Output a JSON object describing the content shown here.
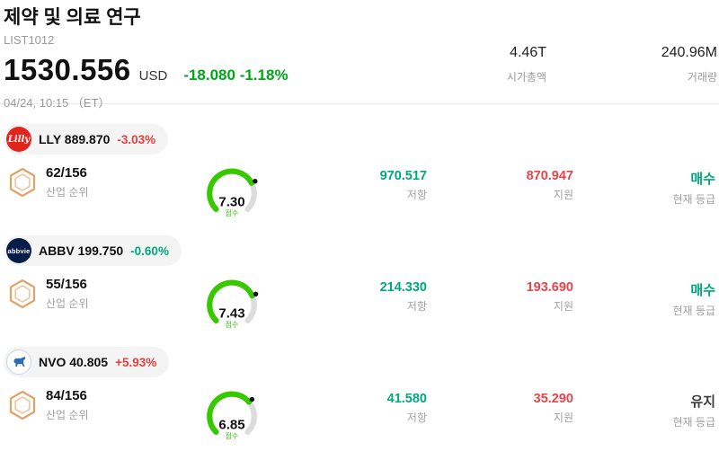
{
  "colors": {
    "main_change_green": "#00a619",
    "down_teal": "#00a87e",
    "up_red": "#e0433f",
    "support_red": "#e5454b",
    "gauge_green": "#37c800",
    "rating_hold_dark": "#3c3c3c"
  },
  "header": {
    "title": "제약 및 의료 연구",
    "list_id": "LIST1012",
    "price": "1530.556",
    "currency": "USD",
    "change": "-18.080 -1.18%",
    "datetime": "04/24, 10:15 （ET）",
    "market_cap": {
      "value": "4.46T",
      "label": "시가총액"
    },
    "volume": {
      "value": "240.96M",
      "label": "거래량"
    }
  },
  "labels": {
    "industry_rank": "산업 순위",
    "score": "점수",
    "resistance": "저항",
    "support": "지원",
    "current_rating": "현재 등급"
  },
  "icons": {
    "rank_badge": "hexagon-badge-icon",
    "nvo_logo": "bull-icon"
  },
  "stocks": [
    {
      "symbol": "LLY",
      "price": "889.870",
      "change": "-3.03%",
      "change_color": "#e0433f",
      "logo_text": "Lilly",
      "logo_bg": "#e1251b",
      "rank": "62/156",
      "score": "7.30",
      "resistance": "970.517",
      "support": "870.947",
      "rating": "매수",
      "rating_color": "#00a87e"
    },
    {
      "symbol": "ABBV",
      "price": "199.750",
      "change": "-0.60%",
      "change_color": "#00a87e",
      "logo_text": "abbvie",
      "logo_bg": "#071d49",
      "rank": "55/156",
      "score": "7.43",
      "resistance": "214.330",
      "support": "193.690",
      "rating": "매수",
      "rating_color": "#00a87e"
    },
    {
      "symbol": "NVO",
      "price": "40.805",
      "change": "+5.93%",
      "change_color": "#e0433f",
      "logo_text": "",
      "logo_bg": "#ffffff",
      "rank": "84/156",
      "score": "6.85",
      "resistance": "41.580",
      "support": "35.290",
      "rating": "유지",
      "rating_color": "#3c3c3c"
    }
  ]
}
